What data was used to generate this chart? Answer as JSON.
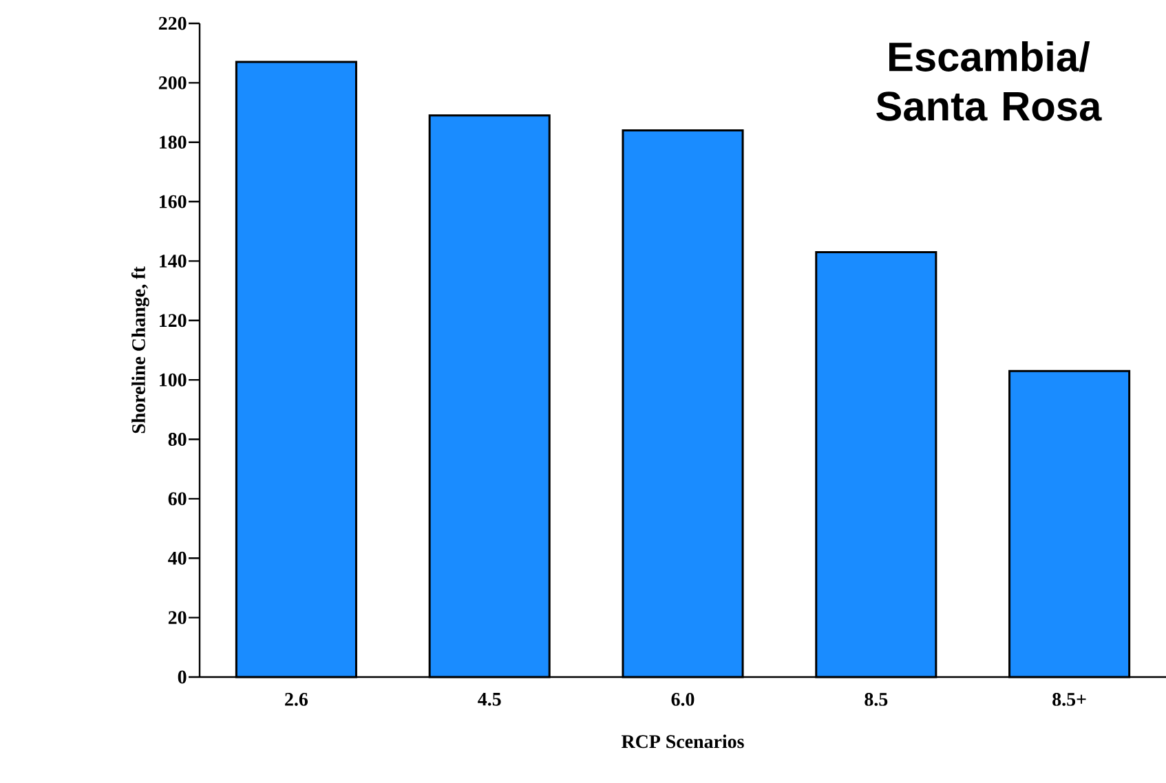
{
  "chart_data": {
    "type": "bar",
    "title": "Escambia/ Santa Rosa",
    "xlabel": "RCP Scenarios",
    "ylabel": "Shoreline Change, ft",
    "categories": [
      "2.6",
      "4.5",
      "6.0",
      "8.5",
      "8.5+"
    ],
    "values": [
      207,
      189,
      184,
      143,
      103
    ],
    "color": "#1a8cff",
    "ylim": [
      0,
      220
    ],
    "yticks": [
      0,
      20,
      40,
      60,
      80,
      100,
      120,
      140,
      160,
      180,
      200,
      220
    ],
    "grid": false
  }
}
